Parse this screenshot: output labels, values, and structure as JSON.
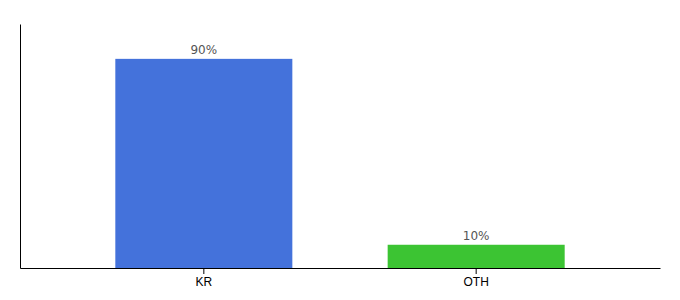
{
  "chart_data": {
    "type": "bar",
    "categories": [
      "KR",
      "OTH"
    ],
    "values": [
      90,
      10
    ],
    "value_labels": [
      "90%",
      "10%"
    ],
    "data_labels": true,
    "colors": [
      "#4472db",
      "#3cc433"
    ],
    "ylim": [
      0,
      105
    ],
    "tick_labels": "x"
  }
}
